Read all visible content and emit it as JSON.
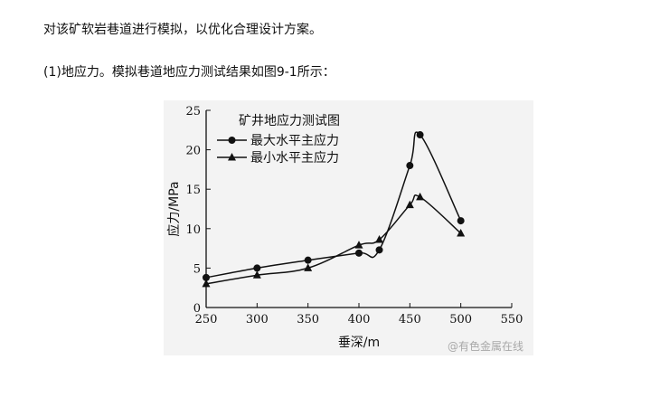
{
  "text": {
    "line1": "对该矿软岩巷道进行模拟，以优化合理设计方案。",
    "line2": "(1)地应力。模拟巷道地应力测试结果如图9-1所示："
  },
  "watermark": "@有色金属在线",
  "colors": {
    "ink": "#111111",
    "figure_bg": "#f3f3f3",
    "watermark": "#a8a8a8"
  },
  "chart_data": {
    "type": "line",
    "title": "矿井地应力测试图",
    "xlabel": "垂深/m",
    "ylabel": "应力/MPa",
    "xlim": [
      250,
      550
    ],
    "ylim": [
      0,
      25
    ],
    "xticks": [
      250,
      300,
      350,
      400,
      450,
      500,
      550
    ],
    "yticks": [
      0,
      5,
      10,
      15,
      20,
      25
    ],
    "grid": false,
    "legend_position": "top-left",
    "series": [
      {
        "name": "最大水平主应力",
        "marker": "circle",
        "points": [
          [
            250,
            3.8
          ],
          [
            300,
            5.0
          ],
          [
            350,
            6.0
          ],
          [
            400,
            6.9
          ],
          [
            420,
            7.3
          ],
          [
            450,
            18.0
          ],
          [
            460,
            21.9
          ],
          [
            500,
            11.0
          ]
        ]
      },
      {
        "name": "最小水平主应力",
        "marker": "triangle",
        "points": [
          [
            250,
            3.0
          ],
          [
            300,
            4.1
          ],
          [
            350,
            5.0
          ],
          [
            400,
            7.9
          ],
          [
            420,
            8.6
          ],
          [
            450,
            13.0
          ],
          [
            460,
            14.0
          ],
          [
            500,
            9.4
          ]
        ]
      }
    ]
  }
}
